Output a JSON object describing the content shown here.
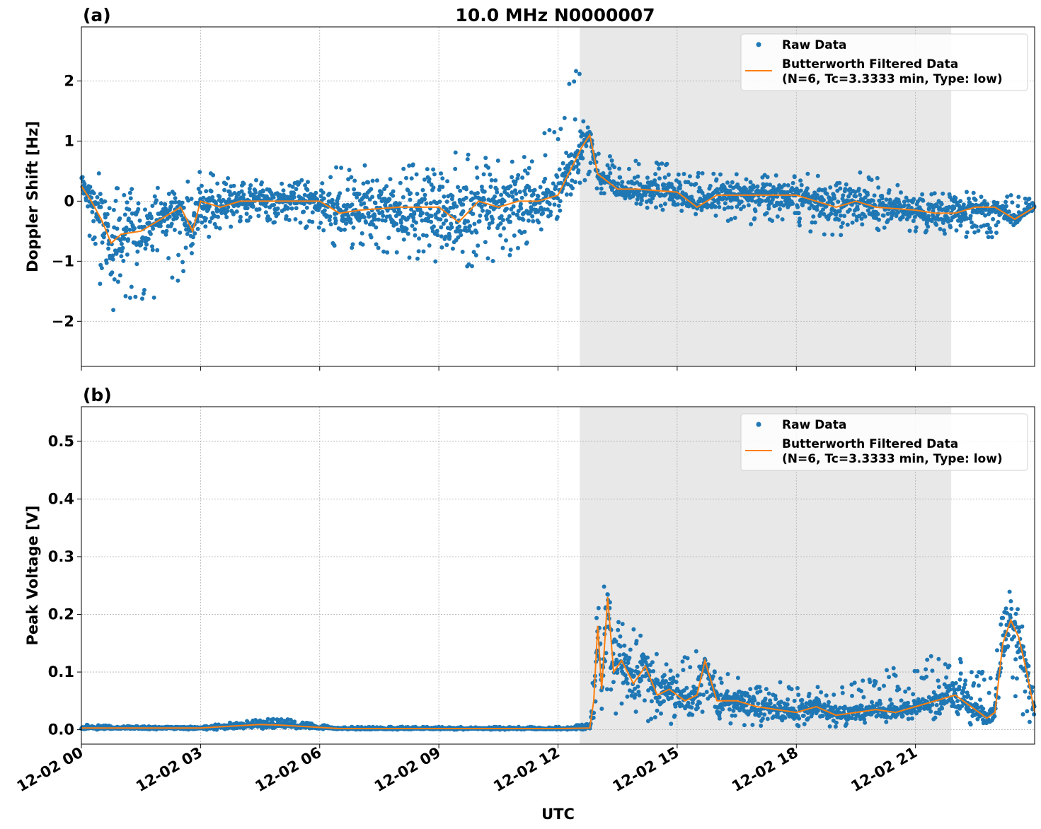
{
  "figure_title": "10.0 MHz N0000007",
  "chart_data": [
    {
      "type": "scatter",
      "panel_label": "(a)",
      "title": "10.0 MHz N0000007",
      "xlabel": "",
      "ylabel": "Doppler Shift [Hz]",
      "xlim_hours": [
        0,
        24
      ],
      "ylim": [
        -2.75,
        2.9
      ],
      "y_ticks": [
        -2,
        -1,
        0,
        1,
        2
      ],
      "y_tick_labels": [
        "−2",
        "−1",
        "0",
        "1",
        "2"
      ],
      "x_ticks_hours": [
        0,
        3,
        6,
        9,
        12,
        15,
        18,
        21
      ],
      "x_tick_labels": [
        "",
        "",
        "",
        "",
        "",
        "",
        "",
        ""
      ],
      "grid": true,
      "shaded_region_hours": [
        12.55,
        21.9
      ],
      "legend": {
        "placement": "top-right",
        "raw_label": "Raw Data",
        "filtered_label_line1": "Butterworth Filtered Data",
        "filtered_label_line2": "(N=6, Tc=3.3333 min, Type: low)"
      },
      "series": [
        {
          "name": "Raw Data",
          "kind": "points",
          "color": "#1f77b4",
          "envelope_x_hours": [
            0,
            0.4,
            0.8,
            1.5,
            2.5,
            3.0,
            4.0,
            5.0,
            6.0,
            6.5,
            7.5,
            8.5,
            9.5,
            10.5,
            11.5,
            12.0,
            12.3,
            12.5,
            12.7,
            13.0,
            14.0,
            15.0,
            16.0,
            17.0,
            18.0,
            19.0,
            20.0,
            21.0,
            22.0,
            23.0,
            24.0
          ],
          "envelope_low": [
            -0.8,
            -1.3,
            -2.0,
            -1.8,
            -1.3,
            -0.7,
            -0.4,
            -0.35,
            -0.5,
            -0.9,
            -0.9,
            -1.0,
            -1.2,
            -1.0,
            -0.7,
            -0.5,
            -0.2,
            0.2,
            0.35,
            0.1,
            -0.1,
            -0.2,
            -0.3,
            -0.4,
            -0.5,
            -0.6,
            -0.5,
            -0.5,
            -0.6,
            -0.6,
            -0.2
          ],
          "envelope_high": [
            0.5,
            0.5,
            0.3,
            0.3,
            0.3,
            0.5,
            0.4,
            0.3,
            0.4,
            0.6,
            0.6,
            0.7,
            0.9,
            0.9,
            1.0,
            1.5,
            2.0,
            2.4,
            1.5,
            0.8,
            0.7,
            0.6,
            0.45,
            0.45,
            0.45,
            0.5,
            0.5,
            0.3,
            0.2,
            0.1,
            0.15
          ]
        },
        {
          "name": "Butterworth Filtered Data",
          "kind": "line",
          "color": "#ff7f0e",
          "x_hours": [
            0,
            0.25,
            0.5,
            0.75,
            1.0,
            1.5,
            2.0,
            2.5,
            2.8,
            3.0,
            3.5,
            4.0,
            5.0,
            6.0,
            6.5,
            7.0,
            8.0,
            9.0,
            9.5,
            10.0,
            10.5,
            11.0,
            11.5,
            12.0,
            12.3,
            12.6,
            12.8,
            13.0,
            13.5,
            14.0,
            15.0,
            15.5,
            16.0,
            17.0,
            18.0,
            18.5,
            19.0,
            19.5,
            20.0,
            21.0,
            21.5,
            22.0,
            22.5,
            23.0,
            23.5,
            24.0
          ],
          "y": [
            0.25,
            0.0,
            -0.3,
            -0.7,
            -0.55,
            -0.5,
            -0.3,
            -0.1,
            -0.5,
            0.0,
            -0.1,
            0.0,
            0.0,
            0.0,
            -0.2,
            -0.15,
            -0.1,
            -0.1,
            -0.35,
            0.0,
            -0.1,
            0.0,
            0.0,
            0.1,
            0.5,
            0.9,
            1.1,
            0.45,
            0.2,
            0.2,
            0.15,
            -0.1,
            0.1,
            0.1,
            0.1,
            0.0,
            -0.1,
            0.0,
            -0.1,
            -0.15,
            -0.2,
            -0.2,
            -0.1,
            -0.1,
            -0.3,
            -0.1
          ]
        }
      ]
    },
    {
      "type": "scatter",
      "panel_label": "(b)",
      "title": "",
      "xlabel": "UTC",
      "ylabel": "Peak Voltage [V]",
      "xlim_hours": [
        0,
        24
      ],
      "ylim": [
        -0.025,
        0.56
      ],
      "y_ticks": [
        0.0,
        0.1,
        0.2,
        0.3,
        0.4,
        0.5
      ],
      "y_tick_labels": [
        "0.0",
        "0.1",
        "0.2",
        "0.3",
        "0.4",
        "0.5"
      ],
      "x_ticks_hours": [
        0,
        3,
        6,
        9,
        12,
        15,
        18,
        21
      ],
      "x_tick_labels": [
        "12-02 00",
        "12-02 03",
        "12-02 06",
        "12-02 09",
        "12-02 12",
        "12-02 15",
        "12-02 18",
        "12-02 21"
      ],
      "grid": true,
      "shaded_region_hours": [
        12.55,
        21.9
      ],
      "legend": {
        "placement": "top-right",
        "raw_label": "Raw Data",
        "filtered_label_line1": "Butterworth Filtered Data",
        "filtered_label_line2": "(N=6, Tc=3.3333 min, Type: low)"
      },
      "series": [
        {
          "name": "Raw Data",
          "kind": "points",
          "color": "#1f77b4",
          "envelope_x_hours": [
            0,
            1.0,
            2.0,
            3.0,
            3.5,
            4.0,
            5.0,
            5.5,
            6.0,
            6.5,
            8.0,
            10.0,
            12.0,
            12.8,
            12.9,
            13.0,
            13.2,
            13.5,
            14.0,
            14.5,
            15.0,
            15.5,
            16.0,
            17.0,
            18.0,
            19.0,
            20.0,
            21.0,
            22.0,
            22.5,
            23.0,
            23.3,
            23.6,
            24.0
          ],
          "envelope_low": [
            0.0,
            0.0,
            0.0,
            0.0,
            0.0,
            0.001,
            0.002,
            0.002,
            0.001,
            0.0,
            0.0,
            0.0,
            0.0,
            0.0,
            0.01,
            0.02,
            0.02,
            0.02,
            0.02,
            0.01,
            0.01,
            0.01,
            0.01,
            0.005,
            0.005,
            0.005,
            0.01,
            0.02,
            0.01,
            0.005,
            0.005,
            0.02,
            0.005,
            0.005
          ],
          "envelope_high": [
            0.01,
            0.006,
            0.006,
            0.006,
            0.01,
            0.015,
            0.02,
            0.015,
            0.01,
            0.005,
            0.005,
            0.005,
            0.005,
            0.01,
            0.2,
            0.25,
            0.3,
            0.2,
            0.17,
            0.13,
            0.12,
            0.14,
            0.1,
            0.09,
            0.08,
            0.09,
            0.1,
            0.12,
            0.15,
            0.1,
            0.12,
            0.25,
            0.22,
            0.07
          ]
        },
        {
          "name": "Butterworth Filtered Data",
          "kind": "line",
          "color": "#ff7f0e",
          "x_hours": [
            0,
            1.0,
            2.0,
            3.0,
            3.5,
            4.0,
            4.5,
            5.0,
            5.5,
            6.0,
            6.5,
            8.0,
            10.0,
            12.0,
            12.8,
            12.9,
            13.0,
            13.1,
            13.25,
            13.4,
            13.6,
            13.9,
            14.2,
            14.5,
            14.8,
            15.2,
            15.5,
            15.7,
            16.0,
            16.5,
            17.0,
            17.5,
            18.0,
            18.5,
            19.0,
            19.5,
            20.0,
            20.5,
            21.0,
            21.5,
            22.0,
            22.5,
            22.8,
            23.0,
            23.2,
            23.4,
            23.6,
            23.8,
            24.0
          ],
          "y": [
            0.003,
            0.003,
            0.003,
            0.003,
            0.005,
            0.007,
            0.009,
            0.008,
            0.006,
            0.004,
            0.002,
            0.002,
            0.002,
            0.002,
            0.003,
            0.05,
            0.18,
            0.07,
            0.23,
            0.1,
            0.12,
            0.08,
            0.11,
            0.06,
            0.07,
            0.05,
            0.06,
            0.12,
            0.05,
            0.05,
            0.04,
            0.035,
            0.03,
            0.04,
            0.025,
            0.03,
            0.035,
            0.03,
            0.04,
            0.05,
            0.06,
            0.035,
            0.02,
            0.03,
            0.15,
            0.19,
            0.16,
            0.1,
            0.03
          ]
        }
      ]
    }
  ]
}
